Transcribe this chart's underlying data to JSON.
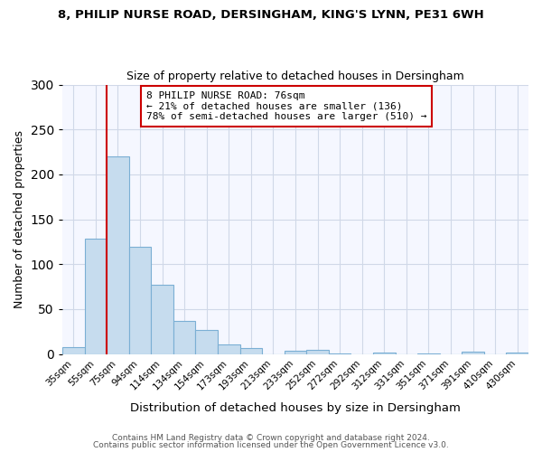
{
  "title1": "8, PHILIP NURSE ROAD, DERSINGHAM, KING'S LYNN, PE31 6WH",
  "title2": "Size of property relative to detached houses in Dersingham",
  "xlabel": "Distribution of detached houses by size in Dersingham",
  "ylabel": "Number of detached properties",
  "bar_labels": [
    "35sqm",
    "55sqm",
    "75sqm",
    "94sqm",
    "114sqm",
    "134sqm",
    "154sqm",
    "173sqm",
    "193sqm",
    "213sqm",
    "233sqm",
    "252sqm",
    "272sqm",
    "292sqm",
    "312sqm",
    "331sqm",
    "351sqm",
    "371sqm",
    "391sqm",
    "410sqm",
    "430sqm"
  ],
  "bar_values": [
    8,
    128,
    220,
    119,
    77,
    37,
    27,
    11,
    7,
    0,
    4,
    5,
    1,
    0,
    2,
    0,
    1,
    0,
    3,
    0,
    2
  ],
  "bar_color": "#c6dcee",
  "bar_edge_color": "#7bafd4",
  "vline_x": 1.5,
  "vline_color": "#cc0000",
  "ylim": [
    0,
    300
  ],
  "yticks": [
    0,
    50,
    100,
    150,
    200,
    250,
    300
  ],
  "annotation_title": "8 PHILIP NURSE ROAD: 76sqm",
  "annotation_line1": "← 21% of detached houses are smaller (136)",
  "annotation_line2": "78% of semi-detached houses are larger (510) →",
  "annotation_box_color": "#cc0000",
  "footnote1": "Contains HM Land Registry data © Crown copyright and database right 2024.",
  "footnote2": "Contains public sector information licensed under the Open Government Licence v3.0.",
  "bg_color": "#ffffff",
  "plot_bg_color": "#f5f7ff",
  "grid_color": "#d0d8e8"
}
